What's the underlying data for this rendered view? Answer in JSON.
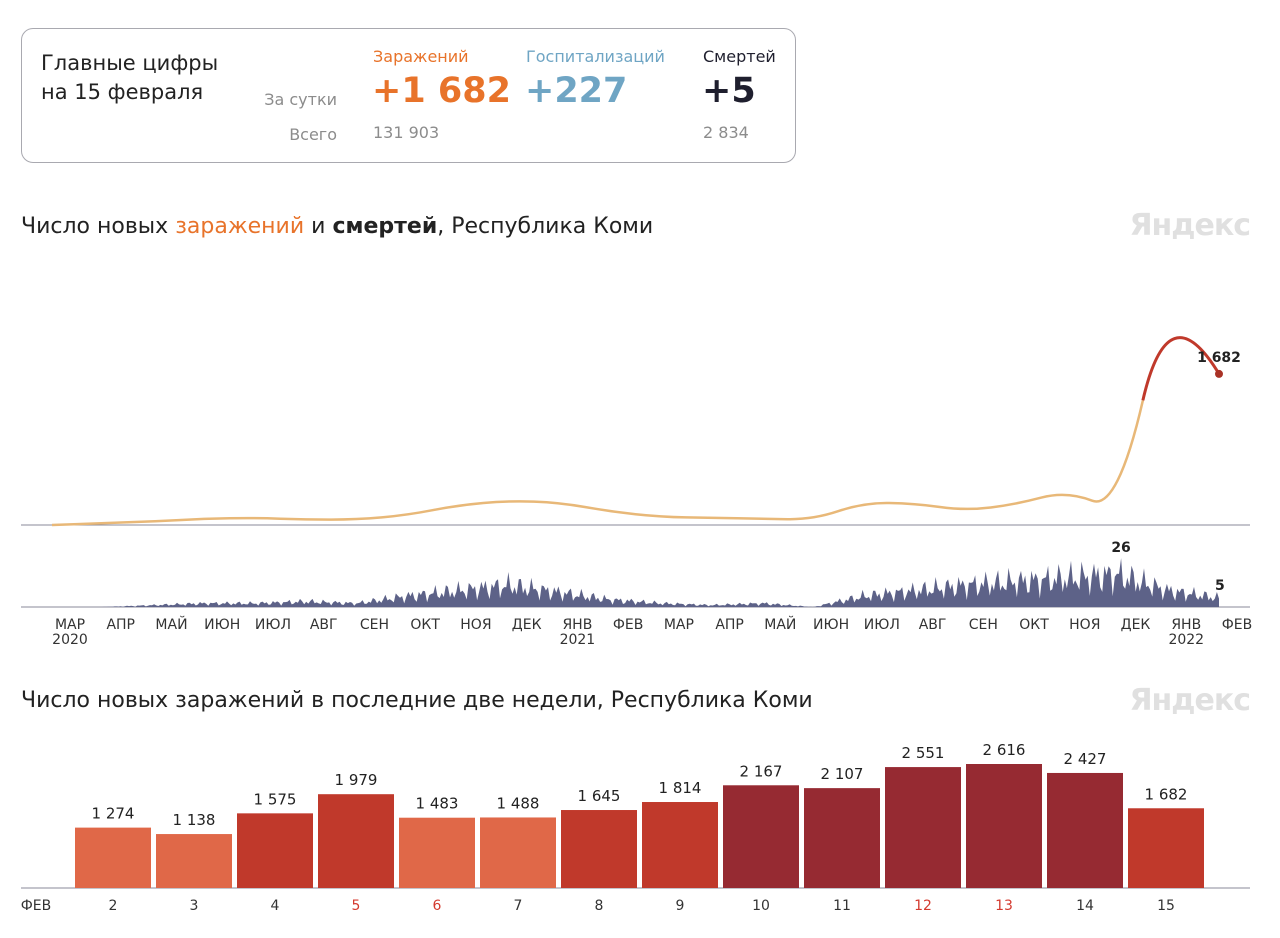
{
  "summary": {
    "title_line1": "Главные цифры",
    "title_line2": "на 15 февраля",
    "row_day_label": "За сутки",
    "row_total_label": "Всего",
    "cases": {
      "label": "Заражений",
      "day": "+1 682",
      "total": "131 903",
      "color": "#e8732a"
    },
    "hosp": {
      "label": "Госпитализаций",
      "day": "+227",
      "total": "",
      "color": "#6fa5c4"
    },
    "deaths": {
      "label": "Смертей",
      "day": "+5",
      "total": "2 834",
      "color": "#1f1f2e"
    }
  },
  "chart1": {
    "title_pre": "Число новых ",
    "title_cases": "заражений",
    "title_mid": " и ",
    "title_deaths": "смертей",
    "title_post": ", Республика Коми",
    "logo": "Яндекс"
  },
  "chart2": {
    "title": "Число новых заражений в последние две недели, Республика Коми",
    "logo": "Яндекс"
  },
  "chart_data": [
    {
      "type": "area",
      "title": "Число новых заражений и смертей, Республика Коми",
      "x_ticks": [
        "МАР",
        "АПР",
        "МАЙ",
        "ИЮН",
        "ИЮЛ",
        "АВГ",
        "СЕН",
        "ОКТ",
        "НОЯ",
        "ДЕК",
        "ЯНВ",
        "ФЕВ",
        "МАР",
        "АПР",
        "МАЙ",
        "ИЮН",
        "ИЮЛ",
        "АВГ",
        "СЕН",
        "ОКТ",
        "НОЯ",
        "ДЕК",
        "ЯНВ",
        "ФЕВ"
      ],
      "year_labels": [
        {
          "tick": 0,
          "label": "2020"
        },
        {
          "tick": 10,
          "label": "2021"
        },
        {
          "tick": 22,
          "label": "2022"
        }
      ],
      "series": [
        {
          "name": "Заражения",
          "last_value": 1682,
          "last_label": "1 682",
          "peak_value": 2616,
          "monthly_points": [
            0,
            20,
            40,
            70,
            80,
            60,
            60,
            110,
            220,
            270,
            250,
            150,
            90,
            80,
            70,
            60,
            250,
            240,
            160,
            230,
            380,
            160,
            2616,
            1682
          ]
        },
        {
          "name": "Смерти",
          "last_value": 5,
          "last_label": "5",
          "max_value": 26,
          "max_label": "26",
          "monthly_points": [
            0,
            0,
            1,
            2,
            2,
            3,
            2,
            6,
            9,
            12,
            8,
            4,
            2,
            1,
            2,
            0,
            6,
            9,
            12,
            14,
            16,
            18,
            9,
            5
          ]
        }
      ]
    },
    {
      "type": "bar",
      "title": "Число новых заражений в последние две недели, Республика Коми",
      "month_label": "ФЕВ",
      "categories": [
        "2",
        "3",
        "4",
        "5",
        "6",
        "7",
        "8",
        "9",
        "10",
        "11",
        "12",
        "13",
        "14",
        "15"
      ],
      "values": [
        1274,
        1138,
        1575,
        1979,
        1483,
        1488,
        1645,
        1814,
        2167,
        2107,
        2551,
        2616,
        2427,
        1682
      ],
      "value_labels": [
        "1 274",
        "1 138",
        "1 575",
        "1 979",
        "1 483",
        "1 488",
        "1 645",
        "1 814",
        "2 167",
        "2 107",
        "2 551",
        "2 616",
        "2 427",
        "1 682"
      ],
      "weekend": [
        false,
        false,
        false,
        true,
        true,
        false,
        false,
        false,
        false,
        false,
        true,
        true,
        false,
        false
      ],
      "ylim": [
        0,
        2616
      ]
    }
  ]
}
